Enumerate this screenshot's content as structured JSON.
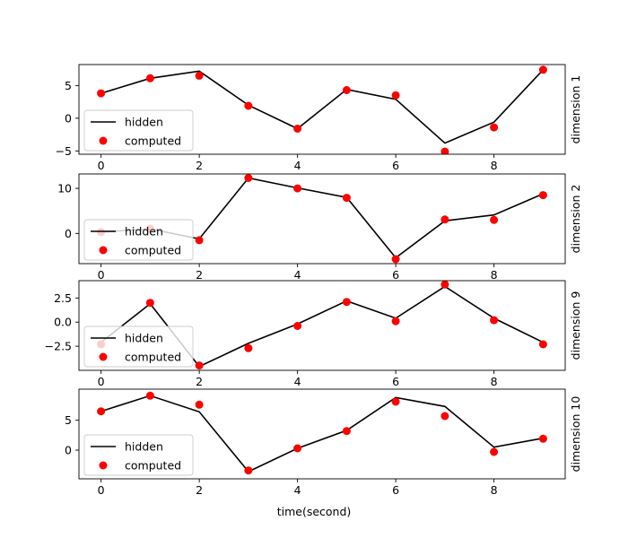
{
  "chart_data": {
    "type": "line+scatter",
    "xlabel": "time(second)",
    "xticks": [
      0,
      2,
      4,
      6,
      8
    ],
    "xlim": [
      -0.45,
      9.45
    ],
    "legend_loc": "lower-left",
    "colors": {
      "hidden": "#000000",
      "computed": "#ff0000"
    },
    "panels": [
      {
        "ylabel": "dimension 1",
        "ylim": [
          -5.5,
          8.2
        ],
        "yticks": [
          -5,
          0,
          5
        ],
        "x": [
          0,
          1,
          2,
          3,
          4,
          5,
          6,
          7,
          8,
          9
        ],
        "series": [
          {
            "name": "hidden",
            "type": "line",
            "values": [
              3.8,
              6.1,
              7.2,
              2.0,
              -1.6,
              4.4,
              2.9,
              -3.8,
              -0.6,
              7.4
            ]
          },
          {
            "name": "computed",
            "type": "scatter",
            "values": [
              3.8,
              6.1,
              6.5,
              1.9,
              -1.6,
              4.3,
              3.5,
              -5.1,
              -1.4,
              7.4
            ]
          }
        ]
      },
      {
        "ylabel": "dimension 2",
        "ylim": [
          -6.7,
          13.2
        ],
        "yticks": [
          0,
          10
        ],
        "x": [
          0,
          1,
          2,
          3,
          4,
          5,
          6,
          7,
          8,
          9
        ],
        "series": [
          {
            "name": "hidden",
            "type": "line",
            "values": [
              0.3,
              1.0,
              -1.2,
              12.3,
              10.1,
              8.0,
              -5.4,
              2.8,
              4.1,
              8.8
            ]
          },
          {
            "name": "computed",
            "type": "scatter",
            "values": [
              0.3,
              1.0,
              -1.5,
              12.3,
              10.0,
              7.9,
              -5.7,
              3.1,
              3.0,
              8.5
            ]
          }
        ]
      },
      {
        "ylabel": "dimension 9",
        "ylim": [
          -5.0,
          4.3
        ],
        "yticks": [
          -2.5,
          0.0,
          2.5
        ],
        "ytick_labels": [
          "−2.5",
          "0.0",
          "2.5"
        ],
        "x": [
          0,
          1,
          2,
          3,
          4,
          5,
          6,
          7,
          8,
          9
        ],
        "series": [
          {
            "name": "hidden",
            "type": "line",
            "values": [
              -2.1,
              1.9,
              -4.6,
              -2.2,
              -0.2,
              2.2,
              0.4,
              3.7,
              0.4,
              -2.1
            ]
          },
          {
            "name": "computed",
            "type": "scatter",
            "values": [
              -2.3,
              2.0,
              -4.5,
              -2.7,
              -0.4,
              2.1,
              0.1,
              3.9,
              0.2,
              -2.3
            ]
          }
        ]
      },
      {
        "ylabel": "dimension 10",
        "ylim": [
          -4.8,
          10.2
        ],
        "yticks": [
          0,
          5
        ],
        "x": [
          0,
          1,
          2,
          3,
          4,
          5,
          6,
          7,
          8,
          9
        ],
        "series": [
          {
            "name": "hidden",
            "type": "line",
            "values": [
              6.5,
              9.1,
              6.4,
              -3.6,
              0.3,
              3.3,
              8.8,
              7.3,
              0.5,
              2.0
            ]
          },
          {
            "name": "computed",
            "type": "scatter",
            "values": [
              6.5,
              9.1,
              7.6,
              -3.4,
              0.3,
              3.2,
              8.1,
              5.7,
              -0.3,
              1.9
            ]
          }
        ]
      }
    ]
  }
}
